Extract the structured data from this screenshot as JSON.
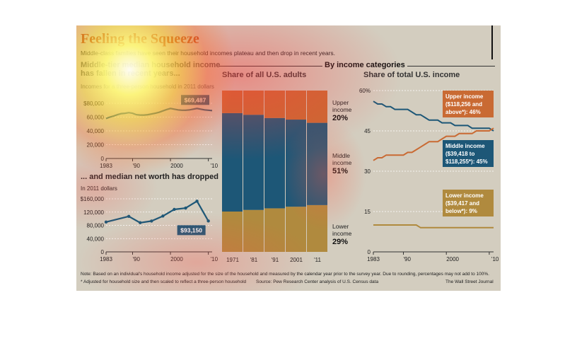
{
  "title": "Feeling the Squeeze",
  "subtitle": "Middle-class families have seen their household incomes plateau and then drop in recent years.",
  "category_header": "By income categories",
  "notes": {
    "note1": "Note: Based on an individual's household income adjusted for the size of the household and measured by the calendar year prior to the survey year. Due to rounding, percentages may not add to 100%.",
    "note2": "* Adjusted for household size and then scaled to reflect a three-person household",
    "source": "Source: Pew Research Center analysis of U.S. Census data",
    "credit": "The Wall Street Journal"
  },
  "colors": {
    "title": "#b3401e",
    "middle": "#1d5777",
    "upper": "#c96a33",
    "lower": "#b08a3e",
    "panel": "#d3cdbf"
  },
  "chart_data": [
    {
      "type": "line",
      "title": "Middle-tier median household income has fallen in recent years...",
      "subtitle": "Incomes for a three-person household in 2011 dollars",
      "x": [
        1983,
        1984,
        1985,
        1986,
        1987,
        1988,
        1989,
        1990,
        1991,
        1992,
        1993,
        1994,
        1995,
        1996,
        1997,
        1998,
        1999,
        2000,
        2001,
        2002,
        2003,
        2004,
        2005,
        2006,
        2007,
        2008,
        2009,
        2010,
        2011
      ],
      "y": [
        58000,
        60000,
        61500,
        63500,
        65000,
        65500,
        66500,
        65500,
        63500,
        63000,
        63000,
        63500,
        64500,
        65500,
        67000,
        69000,
        71000,
        72500,
        71500,
        70500,
        70000,
        70000,
        70500,
        71500,
        72500,
        71500,
        70500,
        70000,
        69487
      ],
      "ylim": [
        0,
        80000
      ],
      "yticks": [
        "0",
        "20,000",
        "40,000",
        "60,000",
        "$80,000"
      ],
      "xticks": [
        "1983",
        "'90",
        "2000",
        "'10"
      ],
      "annotation": "$69,487"
    },
    {
      "type": "line",
      "title": "... and median net worth has dropped",
      "subtitle": "In 2011 dollars",
      "x": [
        1983,
        1989,
        1992,
        1995,
        1998,
        2001,
        2004,
        2007,
        2010
      ],
      "y": [
        90000,
        107000,
        88000,
        93000,
        108000,
        128000,
        132000,
        153000,
        93150
      ],
      "ylim": [
        0,
        160000
      ],
      "yticks": [
        "0",
        "40,000",
        "80,000",
        "120,000",
        "$160,000"
      ],
      "xticks": [
        "1983",
        "'90",
        "2000",
        "'10"
      ],
      "annotation": "$93,150"
    },
    {
      "type": "bar",
      "title": "Share of all U.S. adults",
      "categories": [
        "1971",
        "'81",
        "'91",
        "2001",
        "'11"
      ],
      "series": [
        {
          "name": "Lower income",
          "values": [
            25,
            26,
            27,
            28,
            29
          ]
        },
        {
          "name": "Middle income",
          "values": [
            61,
            59,
            56,
            54,
            51
          ]
        },
        {
          "name": "Upper income",
          "values": [
            14,
            15,
            17,
            18,
            20
          ]
        }
      ],
      "ylim": [
        0,
        100
      ],
      "labels": [
        {
          "line1": "Upper",
          "line2": "income",
          "value": "20%"
        },
        {
          "line1": "Middle",
          "line2": "income",
          "value": "51%"
        },
        {
          "line1": "Lower",
          "line2": "income",
          "value": "29%"
        }
      ]
    },
    {
      "type": "line",
      "title": "Share of total U.S. income",
      "x": [
        1983,
        1984,
        1985,
        1986,
        1987,
        1988,
        1989,
        1990,
        1991,
        1992,
        1993,
        1994,
        1995,
        1996,
        1997,
        1998,
        1999,
        2000,
        2001,
        2002,
        2003,
        2004,
        2005,
        2006,
        2007,
        2008,
        2009,
        2010,
        2011
      ],
      "series": [
        {
          "name": "Middle income",
          "values": [
            56,
            55,
            55,
            54,
            54,
            53,
            53,
            53,
            53,
            52,
            51,
            51,
            50,
            49,
            49,
            49,
            48,
            48,
            48,
            47,
            47,
            47,
            47,
            46,
            46,
            46,
            46,
            46,
            45
          ]
        },
        {
          "name": "Upper income",
          "values": [
            34,
            35,
            35,
            36,
            36,
            36,
            36,
            36,
            37,
            37,
            38,
            39,
            40,
            41,
            41,
            41,
            42,
            43,
            43,
            43,
            44,
            44,
            44,
            44,
            45,
            45,
            45,
            45,
            46
          ]
        },
        {
          "name": "Lower income",
          "values": [
            10,
            10,
            10,
            10,
            10,
            10,
            10,
            10,
            10,
            10,
            10,
            9,
            9,
            9,
            9,
            9,
            9,
            9,
            9,
            9,
            9,
            9,
            9,
            9,
            9,
            9,
            9,
            9,
            9
          ]
        }
      ],
      "ylim": [
        0,
        60
      ],
      "yticks": [
        "0",
        "15",
        "30",
        "45",
        "60%"
      ],
      "xticks": [
        "1983",
        "'90",
        "2000",
        "'10"
      ],
      "callouts": {
        "upper": [
          "Upper income",
          "($118,256 and",
          "above*): 46%"
        ],
        "middle": [
          "Middle income",
          "($39,418 to",
          "$118,255*): 45%"
        ],
        "lower": [
          "Lower income",
          "($39,417 and",
          "below*): 9%"
        ]
      }
    }
  ]
}
